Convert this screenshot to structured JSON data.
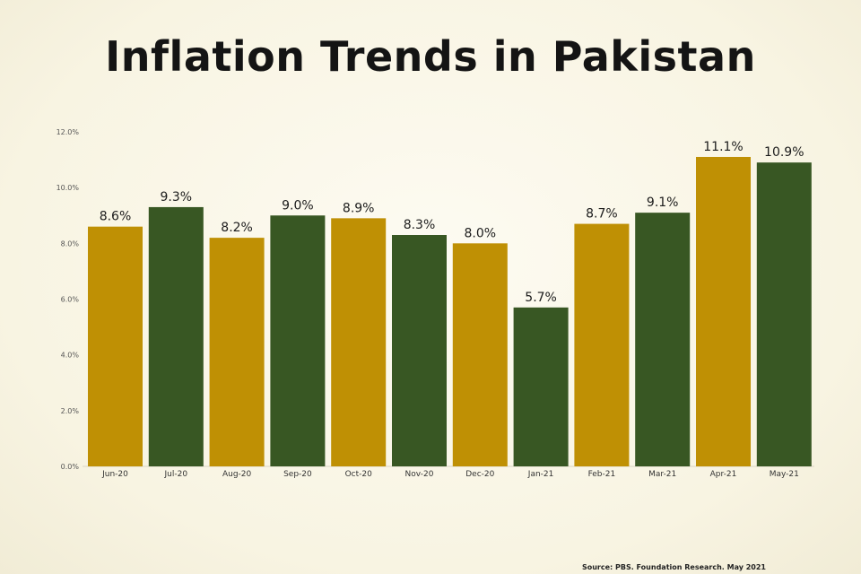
{
  "chart_data": {
    "type": "bar",
    "title": "Inflation Trends in Pakistan",
    "categories": [
      "Jun-20",
      "Jul-20",
      "Aug-20",
      "Sep-20",
      "Oct-20",
      "Nov-20",
      "Dec-20",
      "Jan-21",
      "Feb-21",
      "Mar-21",
      "Apr-21",
      "May-21"
    ],
    "values": [
      8.6,
      9.3,
      8.2,
      9.0,
      8.9,
      8.3,
      8.0,
      5.7,
      8.7,
      9.1,
      11.1,
      10.9
    ],
    "data_labels": [
      "8.6%",
      "9.3%",
      "8.2%",
      "9.0%",
      "8.9%",
      "8.3%",
      "8.0%",
      "5.7%",
      "8.7%",
      "9.1%",
      "11.1%",
      "10.9%"
    ],
    "yticks": [
      "0.0%",
      "2.0%",
      "4.0%",
      "6.0%",
      "8.0%",
      "10.0%",
      "12.0%"
    ],
    "ylim": [
      0,
      12
    ],
    "xlabel": "",
    "ylabel": "",
    "grid": false,
    "bar_colors": [
      "#bf9004",
      "#385723"
    ]
  },
  "source": "Source: PBS. Foundation Research. May 2021"
}
